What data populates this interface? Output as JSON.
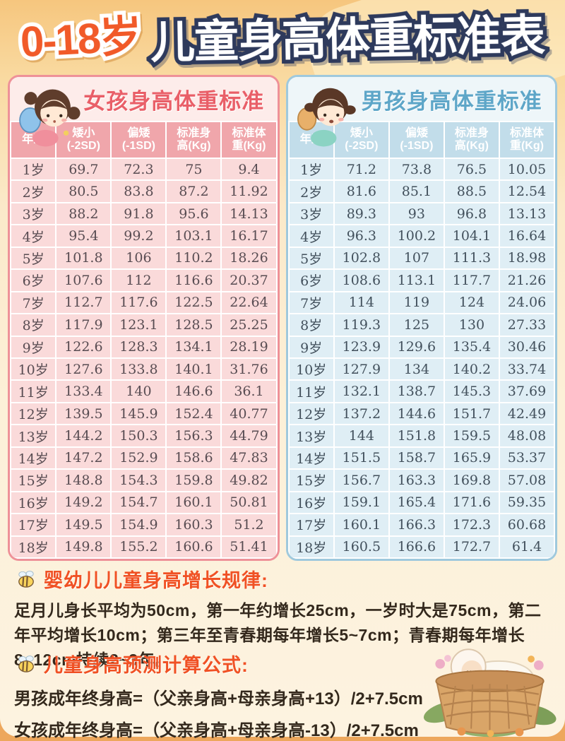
{
  "page_title": {
    "prefix": "0-18岁",
    "main": "儿童身高体重标准表"
  },
  "colors": {
    "accent_orange": "#f15a29",
    "title_outline_navy": "#2e3a5c",
    "girl_pink": "#e95f68",
    "girl_header_bg": "#f0a6ab",
    "girl_cell_bg": "#fadada",
    "boy_blue": "#5ea6c8",
    "boy_header_bg": "#c2ddea",
    "boy_cell_bg": "#dfeef5",
    "section_heading_orange": "#f05124",
    "body_text_brown": "#33281c"
  },
  "icons": {
    "girl_illustration": "girl-cartoon",
    "boy_illustration": "boy-cartoon",
    "bee": "bee-icon",
    "baby_basket": "sleeping-baby-in-basket"
  },
  "chart_data": [
    {
      "type": "table",
      "title": "女孩身高体重标准",
      "columns": [
        "年龄",
        "矮小\n(-2SD)",
        "偏矮\n(-1SD)",
        "标准身\n高(Kg)",
        "标准体\n重(Kg)"
      ],
      "rows": [
        [
          "1岁",
          "69.7",
          "72.3",
          "75",
          "9.4"
        ],
        [
          "2岁",
          "80.5",
          "83.8",
          "87.2",
          "11.92"
        ],
        [
          "3岁",
          "88.2",
          "91.8",
          "95.6",
          "14.13"
        ],
        [
          "4岁",
          "95.4",
          "99.2",
          "103.1",
          "16.17"
        ],
        [
          "5岁",
          "101.8",
          "106",
          "110.2",
          "18.26"
        ],
        [
          "6岁",
          "107.6",
          "112",
          "116.6",
          "20.37"
        ],
        [
          "7岁",
          "112.7",
          "117.6",
          "122.5",
          "22.64"
        ],
        [
          "8岁",
          "117.9",
          "123.1",
          "128.5",
          "25.25"
        ],
        [
          "9岁",
          "122.6",
          "128.3",
          "134.1",
          "28.19"
        ],
        [
          "10岁",
          "127.6",
          "133.8",
          "140.1",
          "31.76"
        ],
        [
          "11岁",
          "133.4",
          "140",
          "146.6",
          "36.1"
        ],
        [
          "12岁",
          "139.5",
          "145.9",
          "152.4",
          "40.77"
        ],
        [
          "13岁",
          "144.2",
          "150.3",
          "156.3",
          "44.79"
        ],
        [
          "14岁",
          "147.2",
          "152.9",
          "158.6",
          "47.83"
        ],
        [
          "15岁",
          "148.8",
          "154.3",
          "159.8",
          "49.82"
        ],
        [
          "16岁",
          "149.2",
          "154.7",
          "160.1",
          "50.81"
        ],
        [
          "17岁",
          "149.5",
          "154.9",
          "160.3",
          "51.2"
        ],
        [
          "18岁",
          "149.8",
          "155.2",
          "160.6",
          "51.41"
        ]
      ]
    },
    {
      "type": "table",
      "title": "男孩身高体重标准",
      "columns": [
        "年龄",
        "矮小\n(-2SD)",
        "偏矮\n(-1SD)",
        "标准身\n高(Kg)",
        "标准体\n重(Kg)"
      ],
      "rows": [
        [
          "1岁",
          "71.2",
          "73.8",
          "76.5",
          "10.05"
        ],
        [
          "2岁",
          "81.6",
          "85.1",
          "88.5",
          "12.54"
        ],
        [
          "3岁",
          "89.3",
          "93",
          "96.8",
          "13.13"
        ],
        [
          "4岁",
          "96.3",
          "100.2",
          "104.1",
          "16.64"
        ],
        [
          "5岁",
          "102.8",
          "107",
          "111.3",
          "18.98"
        ],
        [
          "6岁",
          "108.6",
          "113.1",
          "117.7",
          "21.26"
        ],
        [
          "7岁",
          "114",
          "119",
          "124",
          "24.06"
        ],
        [
          "8岁",
          "119.3",
          "125",
          "130",
          "27.33"
        ],
        [
          "9岁",
          "123.9",
          "129.6",
          "135.4",
          "30.46"
        ],
        [
          "10岁",
          "127.9",
          "134",
          "140.2",
          "33.74"
        ],
        [
          "11岁",
          "132.1",
          "138.7",
          "145.3",
          "37.69"
        ],
        [
          "12岁",
          "137.2",
          "144.6",
          "151.7",
          "42.49"
        ],
        [
          "13岁",
          "144",
          "151.8",
          "159.5",
          "48.08"
        ],
        [
          "14岁",
          "151.5",
          "158.7",
          "165.9",
          "53.37"
        ],
        [
          "15岁",
          "156.7",
          "163.3",
          "169.8",
          "57.08"
        ],
        [
          "16岁",
          "159.1",
          "165.4",
          "171.6",
          "59.35"
        ],
        [
          "17岁",
          "160.1",
          "166.3",
          "172.3",
          "60.68"
        ],
        [
          "18岁",
          "160.5",
          "166.6",
          "172.7",
          "61.4"
        ]
      ]
    }
  ],
  "sections": {
    "growth_rules": {
      "heading": "婴幼儿儿童身高增长规律:",
      "body": "足月儿身长平均为50cm，第一年约增长25cm，一岁时大是75cm，第二年平均增长10cm；第三年至青春期每年增长5~7cm；青春期每年增长8~12cm持续2~3年。"
    },
    "prediction_formula": {
      "heading": "儿童身高预测计算公式:",
      "lines": [
        "男孩成年终身高=（父亲身高+母亲身高+13）/2+7.5cm",
        "女孩成年终身高=（父亲身高+母亲身高-13）/2+7.5cm"
      ]
    }
  }
}
